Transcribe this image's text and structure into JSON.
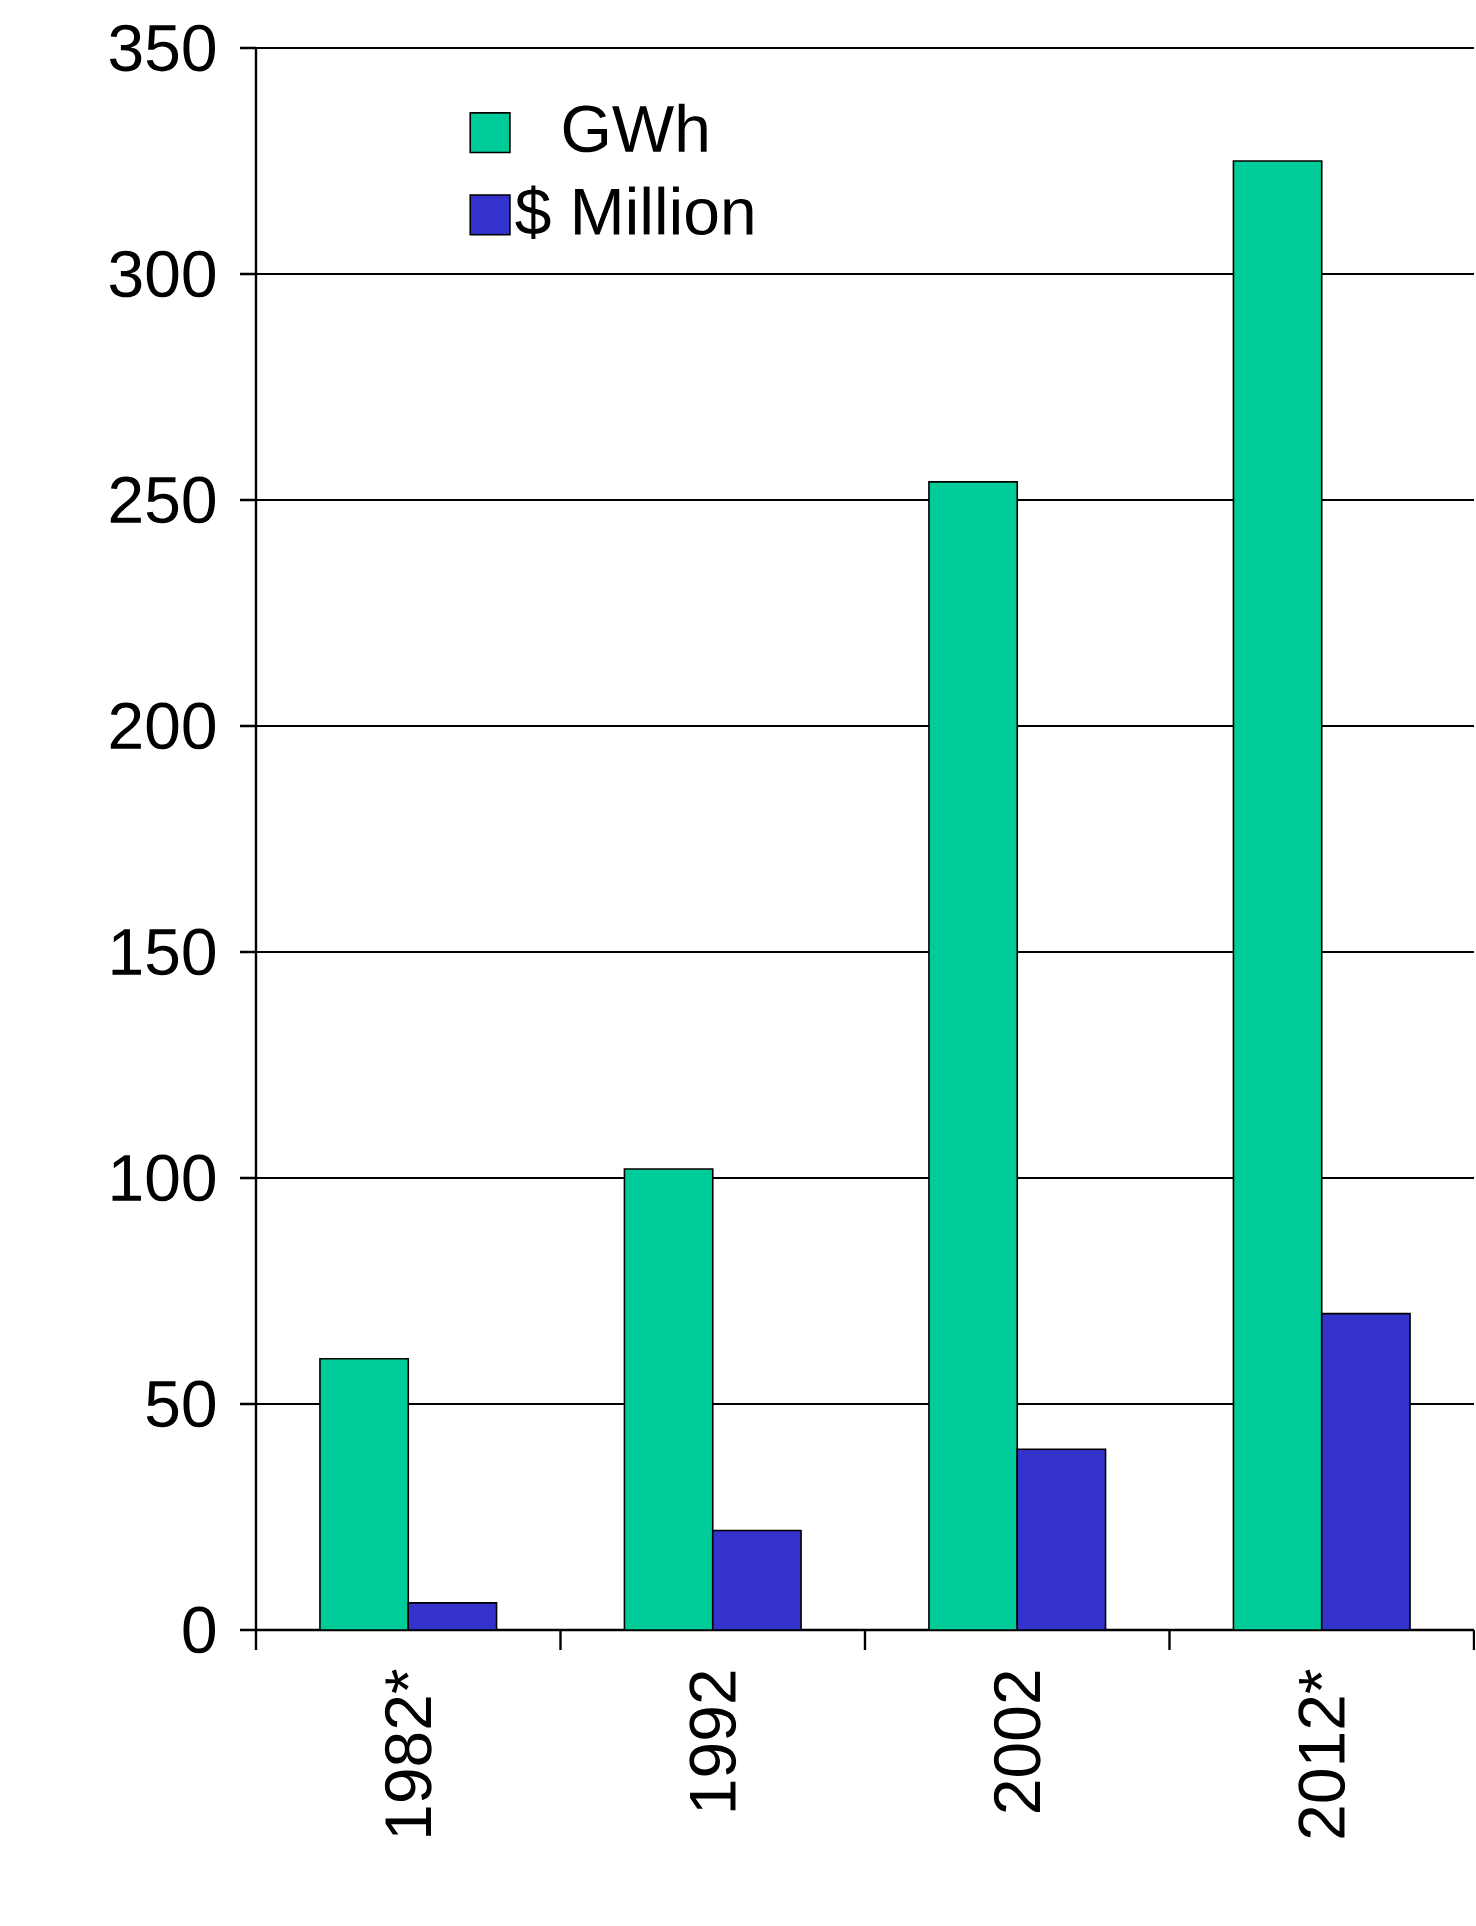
{
  "chart_data": {
    "type": "bar",
    "categories": [
      "1982*",
      "1992",
      "2002",
      "2012*"
    ],
    "series": [
      {
        "name": "GWh",
        "color": "#00cc99",
        "values": [
          60,
          102,
          254,
          325
        ]
      },
      {
        "name": "$ Million",
        "color": "#3333cc",
        "values": [
          6,
          22,
          40,
          70
        ]
      }
    ],
    "ylim": [
      0,
      350
    ],
    "yticks": [
      0,
      50,
      100,
      150,
      200,
      250,
      300,
      350
    ],
    "grid": "y",
    "legend": "top left"
  }
}
